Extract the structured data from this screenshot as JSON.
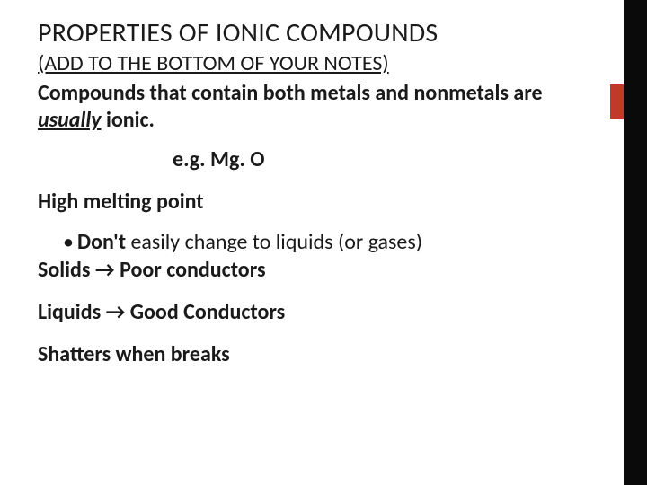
{
  "slide": {
    "title": "PROPERTIES OF IONIC COMPOUNDS",
    "subtitle": "(ADD TO THE BOTTOM OF YOUR NOTES)",
    "intro_pre": "Compounds that contain both metals and nonmetals are ",
    "intro_italic": "usually",
    "intro_post": " ionic.",
    "example": "e.g. Mg. O",
    "prop1": "High melting point",
    "bullet_lead": "Don't",
    "bullet_rest": " easily change to liquids (or gases)",
    "prop2": "Solids → Poor conductors",
    "prop3": "Liquids → Good Conductors",
    "prop4": "Shatters when breaks"
  },
  "style": {
    "background": "#ffffff",
    "text_color": "#1a1a1a",
    "sidebar_black": "#0a0a0a",
    "sidebar_red": "#c0392b",
    "title_fontsize": 30,
    "body_fontsize": 24
  }
}
